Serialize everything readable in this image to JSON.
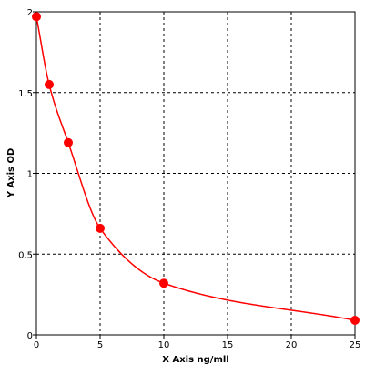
{
  "chart_data": {
    "type": "scatter",
    "title": "",
    "xlabel": "X Axis ng/mll",
    "ylabel": "Y Axis OD",
    "xlim": [
      0,
      25
    ],
    "ylim": [
      0,
      2
    ],
    "xticks": [
      0,
      5,
      10,
      15,
      20,
      25
    ],
    "yticks": [
      0,
      0.5,
      1,
      1.5,
      2
    ],
    "xtick_labels": [
      "0",
      "5",
      "10",
      "15",
      "20",
      "25"
    ],
    "ytick_labels": [
      "0",
      "0.5",
      "1",
      "1.5",
      "2"
    ],
    "grid": true,
    "grid_style": "dashed",
    "colors": {
      "series": "#ff0000",
      "grid": "#000000",
      "axis": "#000000"
    },
    "series": [
      {
        "x": [
          0,
          1,
          2.5,
          5,
          10,
          25
        ],
        "y": [
          1.97,
          1.55,
          1.19,
          0.66,
          0.32,
          0.09
        ],
        "fit_curve": true
      }
    ]
  }
}
